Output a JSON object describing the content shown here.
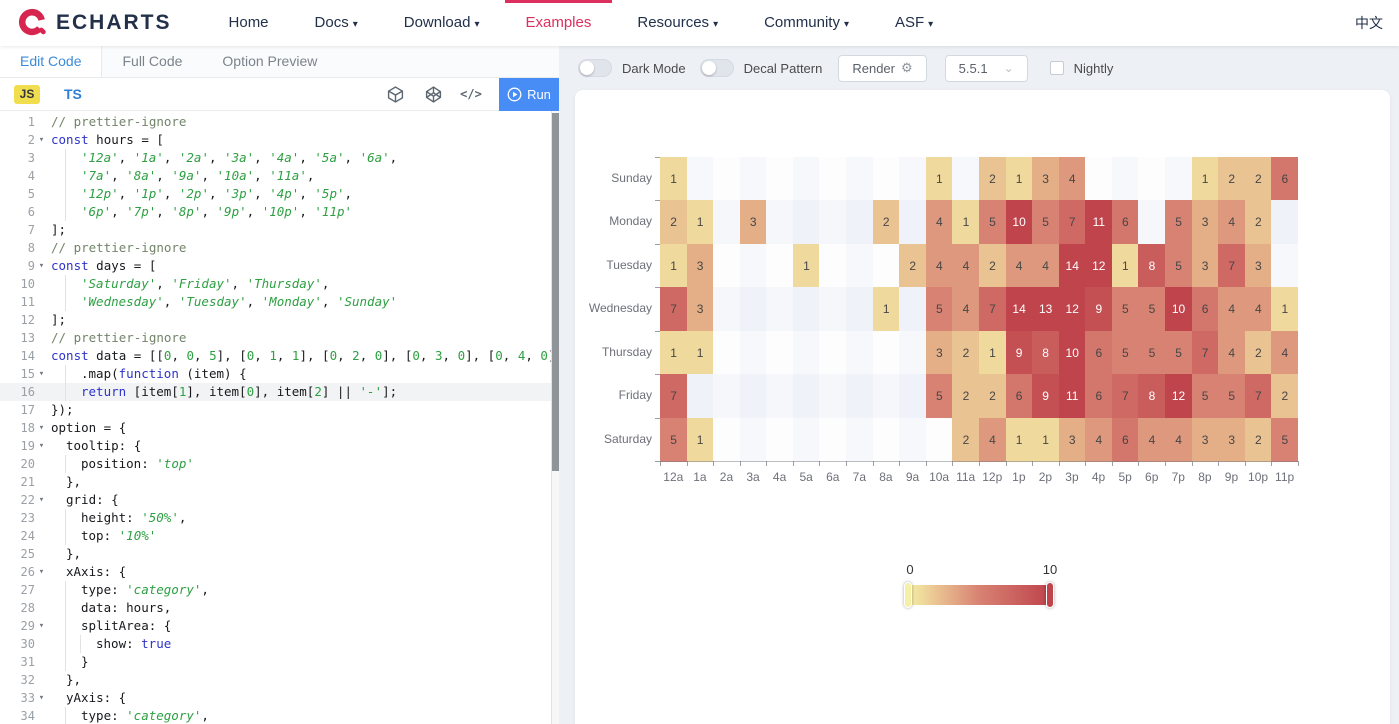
{
  "nav": {
    "logo_text": "ECHARTS",
    "accent": "#dd2f5e",
    "items": [
      {
        "label": "Home",
        "dropdown": false,
        "active": false
      },
      {
        "label": "Docs",
        "dropdown": true,
        "active": false
      },
      {
        "label": "Download",
        "dropdown": true,
        "active": false
      },
      {
        "label": "Examples",
        "dropdown": false,
        "active": true
      },
      {
        "label": "Resources",
        "dropdown": true,
        "active": false
      },
      {
        "label": "Community",
        "dropdown": true,
        "active": false
      },
      {
        "label": "ASF",
        "dropdown": true,
        "active": false
      }
    ],
    "lang": "中文"
  },
  "editor_panel": {
    "tabs": [
      {
        "label": "Edit Code",
        "active": true
      },
      {
        "label": "Full Code",
        "active": false
      },
      {
        "label": "Option Preview",
        "active": false
      }
    ],
    "js_label": "JS",
    "ts_label": "TS",
    "code_icon_glyph": "</>",
    "run_label": "Run",
    "code": {
      "active_line": 16,
      "lines": [
        {
          "n": 1,
          "fold": false,
          "ind": 0,
          "t": [
            [
              "c",
              "// prettier-ignore"
            ]
          ]
        },
        {
          "n": 2,
          "fold": true,
          "ind": 0,
          "t": [
            [
              "k",
              "const"
            ],
            [
              "p",
              " hours = ["
            ]
          ]
        },
        {
          "n": 3,
          "fold": false,
          "ind": 4,
          "t": [
            [
              "s",
              "'12a'"
            ],
            [
              "p",
              ", "
            ],
            [
              "s",
              "'1a'"
            ],
            [
              "p",
              ", "
            ],
            [
              "s",
              "'2a'"
            ],
            [
              "p",
              ", "
            ],
            [
              "s",
              "'3a'"
            ],
            [
              "p",
              ", "
            ],
            [
              "s",
              "'4a'"
            ],
            [
              "p",
              ", "
            ],
            [
              "s",
              "'5a'"
            ],
            [
              "p",
              ", "
            ],
            [
              "s",
              "'6a'"
            ],
            [
              "p",
              ","
            ]
          ]
        },
        {
          "n": 4,
          "fold": false,
          "ind": 4,
          "t": [
            [
              "s",
              "'7a'"
            ],
            [
              "p",
              ", "
            ],
            [
              "s",
              "'8a'"
            ],
            [
              "p",
              ", "
            ],
            [
              "s",
              "'9a'"
            ],
            [
              "p",
              ", "
            ],
            [
              "s",
              "'10a'"
            ],
            [
              "p",
              ", "
            ],
            [
              "s",
              "'11a'"
            ],
            [
              "p",
              ","
            ]
          ]
        },
        {
          "n": 5,
          "fold": false,
          "ind": 4,
          "t": [
            [
              "s",
              "'12p'"
            ],
            [
              "p",
              ", "
            ],
            [
              "s",
              "'1p'"
            ],
            [
              "p",
              ", "
            ],
            [
              "s",
              "'2p'"
            ],
            [
              "p",
              ", "
            ],
            [
              "s",
              "'3p'"
            ],
            [
              "p",
              ", "
            ],
            [
              "s",
              "'4p'"
            ],
            [
              "p",
              ", "
            ],
            [
              "s",
              "'5p'"
            ],
            [
              "p",
              ","
            ]
          ]
        },
        {
          "n": 6,
          "fold": false,
          "ind": 4,
          "t": [
            [
              "s",
              "'6p'"
            ],
            [
              "p",
              ", "
            ],
            [
              "s",
              "'7p'"
            ],
            [
              "p",
              ", "
            ],
            [
              "s",
              "'8p'"
            ],
            [
              "p",
              ", "
            ],
            [
              "s",
              "'9p'"
            ],
            [
              "p",
              ", "
            ],
            [
              "s",
              "'10p'"
            ],
            [
              "p",
              ", "
            ],
            [
              "s",
              "'11p'"
            ]
          ]
        },
        {
          "n": 7,
          "fold": false,
          "ind": 0,
          "t": [
            [
              "p",
              "];"
            ]
          ]
        },
        {
          "n": 8,
          "fold": false,
          "ind": 0,
          "t": [
            [
              "c",
              "// prettier-ignore"
            ]
          ]
        },
        {
          "n": 9,
          "fold": true,
          "ind": 0,
          "t": [
            [
              "k",
              "const"
            ],
            [
              "p",
              " days = ["
            ]
          ]
        },
        {
          "n": 10,
          "fold": false,
          "ind": 4,
          "t": [
            [
              "s",
              "'Saturday'"
            ],
            [
              "p",
              ", "
            ],
            [
              "s",
              "'Friday'"
            ],
            [
              "p",
              ", "
            ],
            [
              "s",
              "'Thursday'"
            ],
            [
              "p",
              ","
            ]
          ]
        },
        {
          "n": 11,
          "fold": false,
          "ind": 4,
          "t": [
            [
              "s",
              "'Wednesday'"
            ],
            [
              "p",
              ", "
            ],
            [
              "s",
              "'Tuesday'"
            ],
            [
              "p",
              ", "
            ],
            [
              "s",
              "'Monday'"
            ],
            [
              "p",
              ", "
            ],
            [
              "s",
              "'Sunday'"
            ]
          ]
        },
        {
          "n": 12,
          "fold": false,
          "ind": 0,
          "t": [
            [
              "p",
              "];"
            ]
          ]
        },
        {
          "n": 13,
          "fold": false,
          "ind": 0,
          "t": [
            [
              "c",
              "// prettier-ignore"
            ]
          ]
        },
        {
          "n": 14,
          "fold": false,
          "ind": 0,
          "t": [
            [
              "k",
              "const"
            ],
            [
              "p",
              " data = [["
            ],
            [
              "n",
              "0"
            ],
            [
              "p",
              ", "
            ],
            [
              "n",
              "0"
            ],
            [
              "p",
              ", "
            ],
            [
              "n",
              "5"
            ],
            [
              "p",
              "], ["
            ],
            [
              "n",
              "0"
            ],
            [
              "p",
              ", "
            ],
            [
              "n",
              "1"
            ],
            [
              "p",
              ", "
            ],
            [
              "n",
              "1"
            ],
            [
              "p",
              "], ["
            ],
            [
              "n",
              "0"
            ],
            [
              "p",
              ", "
            ],
            [
              "n",
              "2"
            ],
            [
              "p",
              ", "
            ],
            [
              "n",
              "0"
            ],
            [
              "p",
              "], ["
            ],
            [
              "n",
              "0"
            ],
            [
              "p",
              ", "
            ],
            [
              "n",
              "3"
            ],
            [
              "p",
              ", "
            ],
            [
              "n",
              "0"
            ],
            [
              "p",
              "], ["
            ],
            [
              "n",
              "0"
            ],
            [
              "p",
              ", "
            ],
            [
              "n",
              "4"
            ],
            [
              "p",
              ", "
            ],
            [
              "n",
              "0"
            ],
            [
              "p",
              "], ["
            ]
          ]
        },
        {
          "n": 15,
          "fold": true,
          "ind": 4,
          "t": [
            [
              "p",
              ".map("
            ],
            [
              "k",
              "function"
            ],
            [
              "p",
              " (item) {"
            ]
          ]
        },
        {
          "n": 16,
          "fold": false,
          "ind": 4,
          "t": [
            [
              "k",
              "return"
            ],
            [
              "p",
              " [item["
            ],
            [
              "n",
              "1"
            ],
            [
              "p",
              "], item["
            ],
            [
              "n",
              "0"
            ],
            [
              "p",
              "], item["
            ],
            [
              "n",
              "2"
            ],
            [
              "p",
              "] || "
            ],
            [
              "s",
              "'-'"
            ],
            [
              "p",
              "];"
            ]
          ]
        },
        {
          "n": 17,
          "fold": false,
          "ind": 0,
          "t": [
            [
              "p",
              "});"
            ]
          ]
        },
        {
          "n": 18,
          "fold": true,
          "ind": 0,
          "t": [
            [
              "p",
              "option = {"
            ]
          ]
        },
        {
          "n": 19,
          "fold": true,
          "ind": 2,
          "t": [
            [
              "p",
              "tooltip: {"
            ]
          ]
        },
        {
          "n": 20,
          "fold": false,
          "ind": 4,
          "t": [
            [
              "p",
              "position: "
            ],
            [
              "s",
              "'top'"
            ]
          ]
        },
        {
          "n": 21,
          "fold": false,
          "ind": 2,
          "t": [
            [
              "p",
              "},"
            ]
          ]
        },
        {
          "n": 22,
          "fold": true,
          "ind": 2,
          "t": [
            [
              "p",
              "grid: {"
            ]
          ]
        },
        {
          "n": 23,
          "fold": false,
          "ind": 4,
          "t": [
            [
              "p",
              "height: "
            ],
            [
              "s",
              "'50%'"
            ],
            [
              "p",
              ","
            ]
          ]
        },
        {
          "n": 24,
          "fold": false,
          "ind": 4,
          "t": [
            [
              "p",
              "top: "
            ],
            [
              "s",
              "'10%'"
            ]
          ]
        },
        {
          "n": 25,
          "fold": false,
          "ind": 2,
          "t": [
            [
              "p",
              "},"
            ]
          ]
        },
        {
          "n": 26,
          "fold": true,
          "ind": 2,
          "t": [
            [
              "p",
              "xAxis: {"
            ]
          ]
        },
        {
          "n": 27,
          "fold": false,
          "ind": 4,
          "t": [
            [
              "p",
              "type: "
            ],
            [
              "s",
              "'category'"
            ],
            [
              "p",
              ","
            ]
          ]
        },
        {
          "n": 28,
          "fold": false,
          "ind": 4,
          "t": [
            [
              "p",
              "data: hours,"
            ]
          ]
        },
        {
          "n": 29,
          "fold": true,
          "ind": 4,
          "t": [
            [
              "p",
              "splitArea: {"
            ]
          ]
        },
        {
          "n": 30,
          "fold": false,
          "ind": 6,
          "t": [
            [
              "p",
              "show: "
            ],
            [
              "k",
              "true"
            ]
          ]
        },
        {
          "n": 31,
          "fold": false,
          "ind": 4,
          "t": [
            [
              "p",
              "}"
            ]
          ]
        },
        {
          "n": 32,
          "fold": false,
          "ind": 2,
          "t": [
            [
              "p",
              "},"
            ]
          ]
        },
        {
          "n": 33,
          "fold": true,
          "ind": 2,
          "t": [
            [
              "p",
              "yAxis: {"
            ]
          ]
        },
        {
          "n": 34,
          "fold": false,
          "ind": 4,
          "t": [
            [
              "p",
              "type: "
            ],
            [
              "s",
              "'category'"
            ],
            [
              "p",
              ","
            ]
          ]
        }
      ]
    }
  },
  "preview_panel": {
    "toolbar": {
      "dark_mode_label": "Dark Mode",
      "decal_label": "Decal Pattern",
      "render_label": "Render",
      "version": "5.5.1",
      "nightly_label": "Nightly"
    }
  },
  "chart_data": {
    "type": "heatmap",
    "hours": [
      "12a",
      "1a",
      "2a",
      "3a",
      "4a",
      "5a",
      "6a",
      "7a",
      "8a",
      "9a",
      "10a",
      "11a",
      "12p",
      "1p",
      "2p",
      "3p",
      "4p",
      "5p",
      "6p",
      "7p",
      "8p",
      "9p",
      "10p",
      "11p"
    ],
    "days_top_to_bottom": [
      "Sunday",
      "Monday",
      "Tuesday",
      "Wednesday",
      "Thursday",
      "Friday",
      "Saturday"
    ],
    "rows": [
      [
        1,
        0,
        0,
        0,
        0,
        0,
        0,
        0,
        0,
        0,
        1,
        0,
        2,
        1,
        3,
        4,
        0,
        0,
        0,
        0,
        1,
        2,
        2,
        6
      ],
      [
        2,
        1,
        0,
        3,
        0,
        0,
        0,
        0,
        2,
        0,
        4,
        1,
        5,
        10,
        5,
        7,
        11,
        6,
        0,
        5,
        3,
        4,
        2,
        0
      ],
      [
        1,
        3,
        0,
        0,
        0,
        1,
        0,
        0,
        0,
        2,
        4,
        4,
        2,
        4,
        4,
        14,
        12,
        1,
        8,
        5,
        3,
        7,
        3,
        0
      ],
      [
        7,
        3,
        0,
        0,
        0,
        0,
        0,
        0,
        1,
        0,
        5,
        4,
        7,
        14,
        13,
        12,
        9,
        5,
        5,
        10,
        6,
        4,
        4,
        1
      ],
      [
        1,
        1,
        0,
        0,
        0,
        0,
        0,
        0,
        0,
        0,
        3,
        2,
        1,
        9,
        8,
        10,
        6,
        5,
        5,
        5,
        7,
        4,
        2,
        4
      ],
      [
        7,
        0,
        0,
        0,
        0,
        0,
        0,
        0,
        0,
        0,
        5,
        2,
        2,
        6,
        9,
        11,
        6,
        7,
        8,
        12,
        5,
        5,
        7,
        2
      ],
      [
        5,
        1,
        0,
        0,
        0,
        0,
        0,
        0,
        0,
        0,
        0,
        2,
        4,
        1,
        1,
        3,
        4,
        6,
        4,
        4,
        3,
        3,
        2,
        5
      ]
    ],
    "zero_rendered_as": "blank",
    "visual_map": {
      "min_label": "0",
      "max_label": "10",
      "min": 0,
      "max": 10,
      "colors": [
        "#f6efa6",
        "#d88273",
        "#bf444c"
      ],
      "orient": "horizontal"
    },
    "label_white_threshold": 8,
    "split_area_colors": [
      "rgba(250,250,250,0.2)",
      "rgba(210,219,238,0.2)"
    ]
  }
}
